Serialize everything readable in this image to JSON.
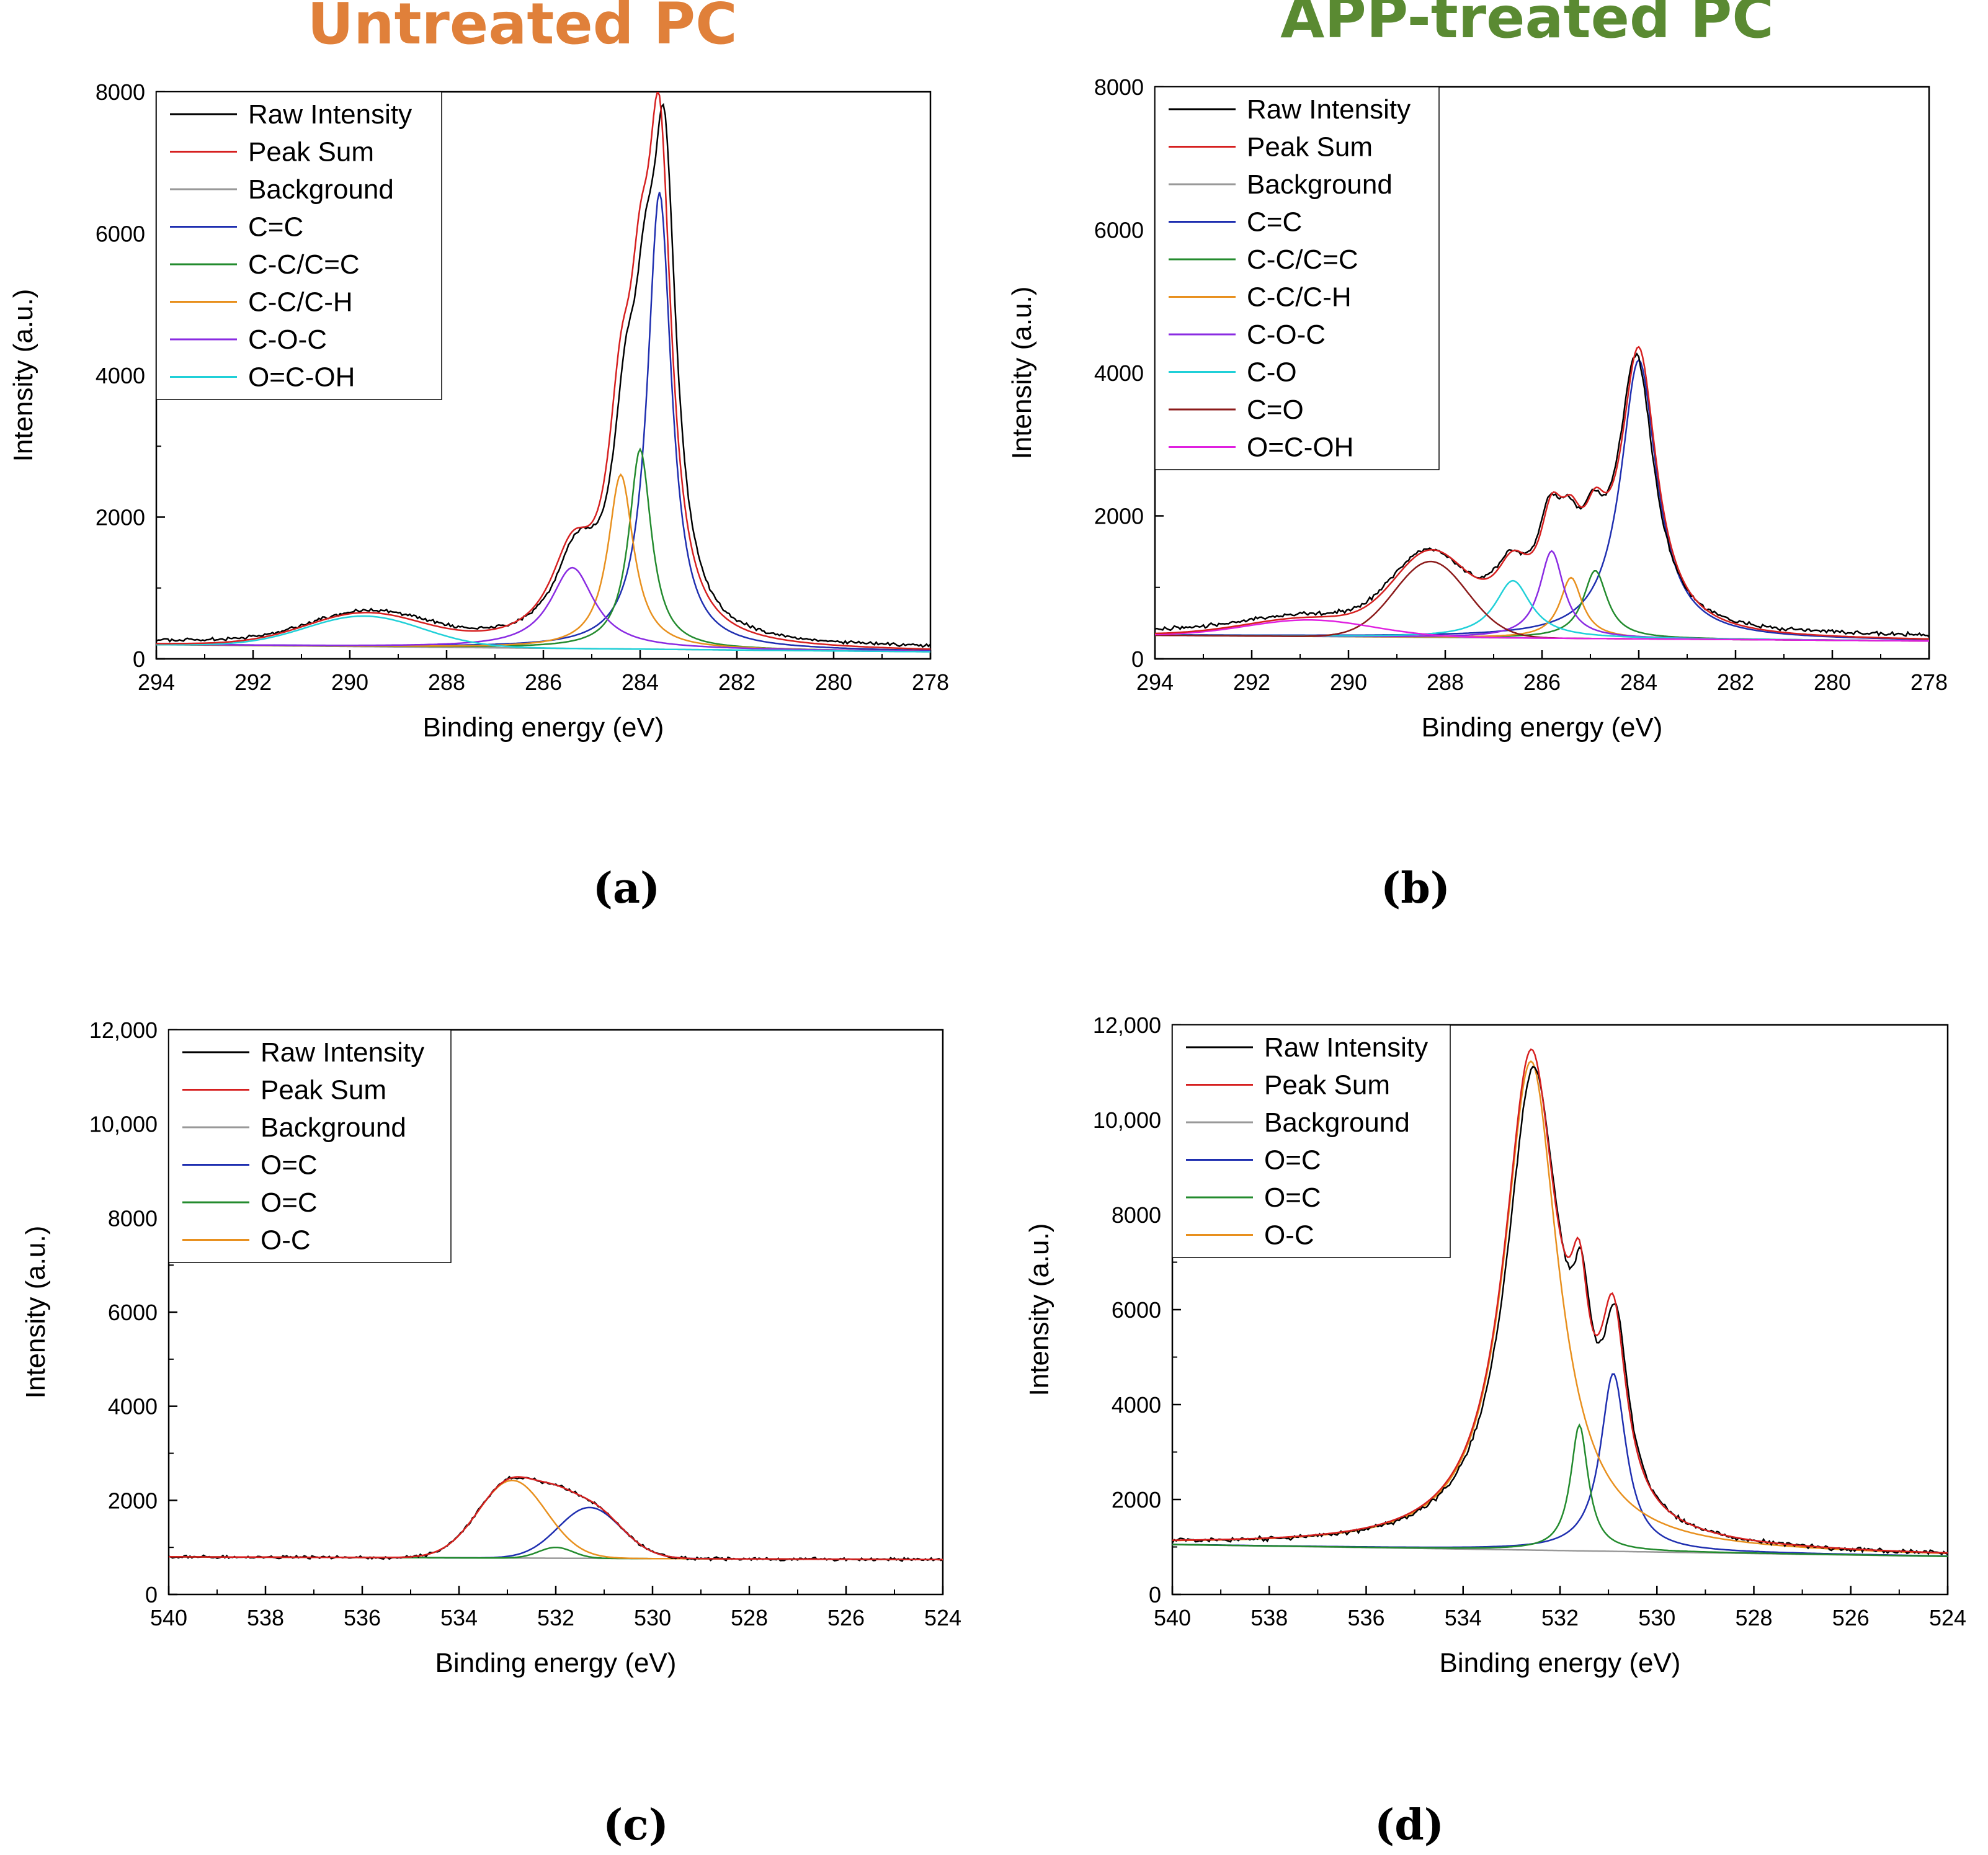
{
  "header": {
    "left_title": "Untreated PC",
    "right_title": "APP-treated PC",
    "left_title_color": "#e0803a",
    "right_title_color": "#5a8a32"
  },
  "colors": {
    "Raw Intensity": "#000000",
    "Peak Sum": "#d62020",
    "Background": "#999999",
    "C=C": "#1f2fb0",
    "C-C/C=C": "#238b2e",
    "C-C/C-H": "#e8901e",
    "C-O-C": "#8a2be2",
    "C-O": "#20d0d8",
    "C=O": "#8b1a1a",
    "O=C-OH (a)": "#20d0d8",
    "O=C-OH (b)": "#e020e0",
    "O=C (blue)": "#1f2fb0",
    "O=C (green)": "#238b2e",
    "O-C": "#e8901e"
  },
  "chart_data": [
    {
      "panel": "a",
      "caption": "(a)",
      "type": "line",
      "xlabel": "Binding energy (eV)",
      "ylabel": "Intensity (a.u.)",
      "xlim": [
        294,
        278
      ],
      "ylim": [
        0,
        8000
      ],
      "x_ticks": [
        "294",
        "292",
        "290",
        "288",
        "286",
        "284",
        "282",
        "280",
        "278"
      ],
      "y_ticks": [
        "0",
        "2000",
        "4000",
        "6000",
        "8000"
      ],
      "legend_position": "top-left",
      "background": {
        "name": "Background",
        "color": "#999999",
        "start": [
          294,
          200
        ],
        "end": [
          278,
          100
        ]
      },
      "components": [
        {
          "name": "C=C",
          "color": "#1f2fb0",
          "center": 283.6,
          "amplitude": 6450,
          "width": 0.3,
          "shape": "lorentz"
        },
        {
          "name": "C-C/C=C",
          "color": "#238b2e",
          "center": 284.0,
          "amplitude": 2820,
          "width": 0.28,
          "shape": "lorentz"
        },
        {
          "name": "C-C/C-H",
          "color": "#e8901e",
          "center": 284.4,
          "amplitude": 2460,
          "width": 0.32,
          "shape": "lorentz"
        },
        {
          "name": "C-O-C",
          "color": "#8a2be2",
          "center": 285.4,
          "amplitude": 1140,
          "width": 0.55,
          "shape": "lorentz"
        },
        {
          "name": "O=C-OH",
          "color": "#20d0d8",
          "center": 289.7,
          "amplitude": 430,
          "width": 1.2,
          "shape": "gauss"
        }
      ],
      "raw_series": {
        "name": "Raw Intensity",
        "color": "#000000",
        "scale": 0.97,
        "shift": 0.1,
        "noise": 30,
        "offset": 50
      },
      "sum_series": {
        "name": "Peak Sum",
        "color": "#d62020"
      },
      "legend": [
        "Raw Intensity",
        "Peak Sum",
        "Background",
        "C=C",
        "C-C/C=C",
        "C-C/C-H",
        "C-O-C",
        "O=C-OH"
      ],
      "legend_colors": [
        "#000000",
        "#d62020",
        "#999999",
        "#1f2fb0",
        "#238b2e",
        "#e8901e",
        "#8a2be2",
        "#20d0d8"
      ]
    },
    {
      "panel": "b",
      "caption": "(b)",
      "type": "line",
      "xlabel": "Binding energy (eV)",
      "ylabel": "Intensity (a.u.)",
      "xlim": [
        294,
        278
      ],
      "ylim": [
        0,
        8000
      ],
      "x_ticks": [
        "294",
        "292",
        "290",
        "288",
        "286",
        "284",
        "282",
        "280",
        "278"
      ],
      "y_ticks": [
        "0",
        "2000",
        "4000",
        "6000",
        "8000"
      ],
      "legend_position": "top-left",
      "background": {
        "name": "Background",
        "color": "#999999",
        "start": [
          294,
          330
        ],
        "end": [
          278,
          250
        ]
      },
      "components": [
        {
          "name": "C=C",
          "color": "#1f2fb0",
          "center": 284.0,
          "amplitude": 3900,
          "width": 0.45,
          "shape": "lorentz"
        },
        {
          "name": "C-C/C=C",
          "color": "#238b2e",
          "center": 284.9,
          "amplitude": 950,
          "width": 0.3,
          "shape": "lorentz"
        },
        {
          "name": "C-C/C-H",
          "color": "#e8901e",
          "center": 285.4,
          "amplitude": 850,
          "width": 0.28,
          "shape": "lorentz"
        },
        {
          "name": "C-O-C",
          "color": "#8a2be2",
          "center": 285.8,
          "amplitude": 1220,
          "width": 0.3,
          "shape": "lorentz"
        },
        {
          "name": "C-O",
          "color": "#20d0d8",
          "center": 286.6,
          "amplitude": 800,
          "width": 0.45,
          "shape": "lorentz"
        },
        {
          "name": "C=O",
          "color": "#8b1a1a",
          "center": 288.3,
          "amplitude": 1060,
          "width": 0.75,
          "shape": "gauss"
        },
        {
          "name": "O=C-OH",
          "color": "#e020e0",
          "center": 290.8,
          "amplitude": 230,
          "width": 1.3,
          "shape": "gauss"
        }
      ],
      "raw_series": {
        "name": "Raw Intensity",
        "color": "#000000",
        "scale": 0.96,
        "shift": -0.05,
        "noise": 35,
        "offset": 60
      },
      "sum_series": {
        "name": "Peak Sum",
        "color": "#d62020"
      },
      "legend": [
        "Raw Intensity",
        "Peak Sum",
        "Background",
        "C=C",
        "C-C/C=C",
        "C-C/C-H",
        "C-O-C",
        "C-O",
        "C=O",
        "O=C-OH"
      ],
      "legend_colors": [
        "#000000",
        "#d62020",
        "#999999",
        "#1f2fb0",
        "#238b2e",
        "#e8901e",
        "#8a2be2",
        "#20d0d8",
        "#8b1a1a",
        "#e020e0"
      ]
    },
    {
      "panel": "c",
      "caption": "(c)",
      "type": "line",
      "xlabel": "Binding energy (eV)",
      "ylabel": "Intensity (a.u.)",
      "xlim": [
        540,
        524
      ],
      "ylim": [
        0,
        12000
      ],
      "x_ticks": [
        "540",
        "538",
        "536",
        "534",
        "532",
        "530",
        "528",
        "526",
        "524"
      ],
      "y_ticks": [
        "0",
        "2000",
        "4000",
        "6000",
        "8000",
        "10,000",
        "12,000"
      ],
      "legend_position": "top-left",
      "background": {
        "name": "Background",
        "color": "#999999",
        "start": [
          540,
          800
        ],
        "end": [
          524,
          740
        ]
      },
      "components": [
        {
          "name": "O=C",
          "color": "#1f2fb0",
          "center": 531.3,
          "amplitude": 1080,
          "width": 0.65,
          "shape": "gauss"
        },
        {
          "name": "O=C",
          "color": "#238b2e",
          "center": 532.0,
          "amplitude": 230,
          "width": 0.35,
          "shape": "gauss"
        },
        {
          "name": "O-C",
          "color": "#e8901e",
          "center": 532.9,
          "amplitude": 1650,
          "width": 0.7,
          "shape": "gauss"
        }
      ],
      "raw_series": {
        "name": "Raw Intensity",
        "color": "#000000",
        "scale": 1.0,
        "shift": 0.0,
        "noise": 40,
        "offset": 0
      },
      "sum_series": {
        "name": "Peak Sum",
        "color": "#d62020"
      },
      "legend": [
        "Raw Intensity",
        "Peak Sum",
        "Background",
        "O=C",
        "O=C",
        "O-C"
      ],
      "legend_colors": [
        "#000000",
        "#d62020",
        "#999999",
        "#1f2fb0",
        "#238b2e",
        "#e8901e"
      ]
    },
    {
      "panel": "d",
      "caption": "(d)",
      "type": "line",
      "xlabel": "Binding energy (eV)",
      "ylabel": "Intensity (a.u.)",
      "xlim": [
        540,
        524
      ],
      "ylim": [
        0,
        12000
      ],
      "x_ticks": [
        "540",
        "538",
        "536",
        "534",
        "532",
        "530",
        "528",
        "526",
        "524"
      ],
      "y_ticks": [
        "0",
        "2000",
        "4000",
        "6000",
        "8000",
        "10,000",
        "12,000"
      ],
      "legend_position": "top-left",
      "background": {
        "name": "Background",
        "color": "#999999",
        "start": [
          540,
          1050
        ],
        "end": [
          524,
          800
        ]
      },
      "components": [
        {
          "name": "O=C",
          "color": "#1f2fb0",
          "center": 530.9,
          "amplitude": 3750,
          "width": 0.32,
          "shape": "lorentz"
        },
        {
          "name": "O=C",
          "color": "#238b2e",
          "center": 531.6,
          "amplitude": 2650,
          "width": 0.22,
          "shape": "lorentz"
        },
        {
          "name": "O-C",
          "color": "#e8901e",
          "center": 532.6,
          "amplitude": 10300,
          "width": 0.68,
          "shape": "lorentz"
        }
      ],
      "raw_series": {
        "name": "Raw Intensity",
        "color": "#000000",
        "scale": 0.965,
        "shift": 0.05,
        "noise": 60,
        "offset": 0
      },
      "sum_series": {
        "name": "Peak Sum",
        "color": "#d62020"
      },
      "legend": [
        "Raw Intensity",
        "Peak Sum",
        "Background",
        "O=C",
        "O=C",
        "O-C"
      ],
      "legend_colors": [
        "#000000",
        "#d62020",
        "#999999",
        "#1f2fb0",
        "#238b2e",
        "#e8901e"
      ]
    }
  ]
}
